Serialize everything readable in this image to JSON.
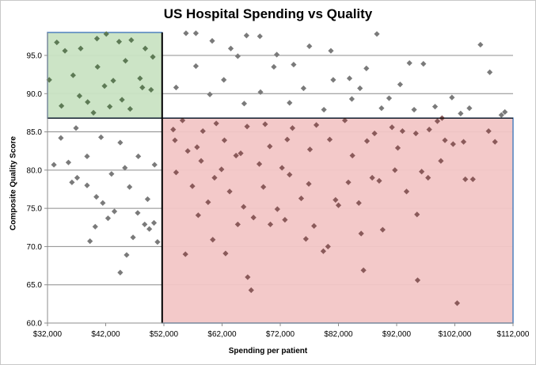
{
  "chart_data": {
    "type": "scatter",
    "title": "US Hospital Spending vs Quality",
    "xlabel": "Spending per patient",
    "ylabel": "Composite Quality Score",
    "xlim": [
      32000,
      112000
    ],
    "ylim": [
      60,
      98
    ],
    "x_ticks": [
      "$32,000",
      "$42,000",
      "$52,000",
      "$62,000",
      "$72,000",
      "$82,000",
      "$92,000",
      "$102,000",
      "$112,000"
    ],
    "x_tick_values": [
      32000,
      42000,
      52000,
      62000,
      72000,
      82000,
      92000,
      102000,
      112000
    ],
    "y_ticks": [
      "60.0",
      "65.0",
      "70.0",
      "75.0",
      "80.0",
      "85.0",
      "90.0",
      "95.0"
    ],
    "y_tick_values": [
      60,
      65,
      70,
      75,
      80,
      85,
      90,
      95
    ],
    "grid": "horizontal",
    "marker": "diamond",
    "point_color": "#7a7a7a",
    "regions": [
      {
        "x_range": [
          32000,
          51700
        ],
        "y_range": [
          86.8,
          98
        ],
        "fill": "#c9e3c3",
        "border": "#4f81bd",
        "marker_color": "#5d7a55"
      },
      {
        "x_range": [
          51700,
          112000
        ],
        "y_range": [
          60,
          86.8
        ],
        "fill": "#f2c6c6",
        "border": "#4f81bd",
        "marker_color": "#8a5a5a"
      }
    ],
    "divider_lines": {
      "x": 51700,
      "y": 86.8,
      "color": "#000000"
    },
    "points": [
      [
        32300,
        91.8
      ],
      [
        33100,
        80.7
      ],
      [
        34300,
        84.2
      ],
      [
        35600,
        81.0
      ],
      [
        36200,
        78.4
      ],
      [
        37100,
        79.0
      ],
      [
        38800,
        78.0
      ],
      [
        39300,
        70.7
      ],
      [
        40200,
        72.6
      ],
      [
        41500,
        75.7
      ],
      [
        42400,
        73.7
      ],
      [
        43500,
        74.6
      ],
      [
        44500,
        66.6
      ],
      [
        45600,
        68.9
      ],
      [
        46700,
        71.2
      ],
      [
        47500,
        74.4
      ],
      [
        48700,
        72.9
      ],
      [
        49500,
        72.3
      ],
      [
        50300,
        73.1
      ],
      [
        50900,
        70.6
      ],
      [
        33600,
        96.7
      ],
      [
        35000,
        95.6
      ],
      [
        37700,
        95.9
      ],
      [
        40500,
        97.2
      ],
      [
        42100,
        97.8
      ],
      [
        44300,
        96.8
      ],
      [
        46400,
        97.0
      ],
      [
        48800,
        95.9
      ],
      [
        50100,
        94.8
      ],
      [
        36400,
        92.4
      ],
      [
        38900,
        88.9
      ],
      [
        41800,
        91.0
      ],
      [
        44800,
        89.2
      ],
      [
        47900,
        92.0
      ],
      [
        49800,
        90.5
      ],
      [
        34400,
        88.4
      ],
      [
        37500,
        89.7
      ],
      [
        40600,
        93.5
      ],
      [
        43300,
        91.7
      ],
      [
        46200,
        88.0
      ],
      [
        48300,
        90.8
      ],
      [
        39900,
        87.5
      ],
      [
        45400,
        94.3
      ],
      [
        42700,
        88.3
      ],
      [
        36900,
        85.5
      ],
      [
        41200,
        84.3
      ],
      [
        44500,
        83.6
      ],
      [
        47600,
        81.8
      ],
      [
        50400,
        80.7
      ],
      [
        38800,
        81.8
      ],
      [
        43000,
        79.5
      ],
      [
        46100,
        77.8
      ],
      [
        49200,
        76.2
      ],
      [
        40400,
        76.5
      ],
      [
        45300,
        80.3
      ],
      [
        55800,
        97.9
      ],
      [
        57500,
        97.9
      ],
      [
        60300,
        96.9
      ],
      [
        63500,
        95.9
      ],
      [
        66200,
        97.6
      ],
      [
        68500,
        97.5
      ],
      [
        71400,
        95.1
      ],
      [
        74300,
        93.8
      ],
      [
        77000,
        96.2
      ],
      [
        80700,
        95.6
      ],
      [
        83900,
        92.0
      ],
      [
        86800,
        93.3
      ],
      [
        88600,
        97.8
      ],
      [
        90700,
        89.4
      ],
      [
        94200,
        94.0
      ],
      [
        96600,
        93.9
      ],
      [
        99800,
        86.8
      ],
      [
        103000,
        87.4
      ],
      [
        106400,
        96.4
      ],
      [
        108000,
        92.8
      ],
      [
        110000,
        87.2
      ],
      [
        62300,
        91.8
      ],
      [
        68600,
        90.2
      ],
      [
        73600,
        88.8
      ],
      [
        79500,
        87.9
      ],
      [
        84300,
        89.3
      ],
      [
        89400,
        88.1
      ],
      [
        95000,
        87.9
      ],
      [
        98600,
        88.3
      ],
      [
        92600,
        91.2
      ],
      [
        85700,
        90.7
      ],
      [
        81100,
        91.8
      ],
      [
        76000,
        90.7
      ],
      [
        70900,
        93.5
      ],
      [
        64700,
        94.9
      ],
      [
        57500,
        93.6
      ],
      [
        59900,
        89.9
      ],
      [
        54100,
        90.8
      ],
      [
        65800,
        88.7
      ],
      [
        101500,
        89.5
      ],
      [
        104500,
        88.1
      ],
      [
        53600,
        85.3
      ],
      [
        56100,
        82.5
      ],
      [
        58400,
        81.2
      ],
      [
        60700,
        79.0
      ],
      [
        63300,
        77.2
      ],
      [
        65700,
        75.2
      ],
      [
        67400,
        73.8
      ],
      [
        69100,
        77.8
      ],
      [
        71500,
        74.9
      ],
      [
        73600,
        79.4
      ],
      [
        75600,
        76.3
      ],
      [
        77800,
        72.7
      ],
      [
        79400,
        69.4
      ],
      [
        81500,
        76.1
      ],
      [
        83700,
        78.4
      ],
      [
        85900,
        71.7
      ],
      [
        87800,
        79.0
      ],
      [
        89600,
        72.2
      ],
      [
        91700,
        80.0
      ],
      [
        93700,
        77.2
      ],
      [
        95500,
        74.2
      ],
      [
        97400,
        79.0
      ],
      [
        99600,
        81.2
      ],
      [
        101700,
        83.4
      ],
      [
        103500,
        83.7
      ],
      [
        105100,
        78.8
      ],
      [
        108900,
        83.7
      ],
      [
        110600,
        87.6
      ],
      [
        55700,
        69.0
      ],
      [
        57900,
        74.1
      ],
      [
        60400,
        70.9
      ],
      [
        62600,
        69.1
      ],
      [
        66400,
        66.0
      ],
      [
        67000,
        64.3
      ],
      [
        64700,
        72.9
      ],
      [
        70300,
        72.9
      ],
      [
        72800,
        73.5
      ],
      [
        76400,
        71.0
      ],
      [
        80200,
        70.0
      ],
      [
        86300,
        66.9
      ],
      [
        95600,
        65.6
      ],
      [
        102400,
        62.6
      ],
      [
        96300,
        79.8
      ],
      [
        92200,
        82.9
      ],
      [
        88200,
        84.8
      ],
      [
        84400,
        81.9
      ],
      [
        80500,
        84.0
      ],
      [
        77100,
        82.7
      ],
      [
        74100,
        85.5
      ],
      [
        70200,
        83.1
      ],
      [
        66300,
        85.7
      ],
      [
        62400,
        83.9
      ],
      [
        58700,
        85.1
      ],
      [
        55200,
        86.5
      ],
      [
        54100,
        79.7
      ],
      [
        56900,
        77.9
      ],
      [
        59600,
        75.8
      ],
      [
        61900,
        80.1
      ],
      [
        64400,
        81.9
      ],
      [
        68400,
        80.8
      ],
      [
        72300,
        80.3
      ],
      [
        76900,
        78.2
      ],
      [
        82000,
        75.4
      ],
      [
        85500,
        75.7
      ],
      [
        89000,
        78.6
      ],
      [
        93000,
        85.1
      ],
      [
        97600,
        85.3
      ],
      [
        100300,
        83.9
      ],
      [
        103800,
        78.8
      ],
      [
        107800,
        85.1
      ],
      [
        53900,
        83.9
      ],
      [
        57700,
        83.0
      ],
      [
        61000,
        86.1
      ],
      [
        65200,
        82.2
      ],
      [
        69400,
        86.0
      ],
      [
        73200,
        84.0
      ],
      [
        78200,
        85.9
      ],
      [
        83100,
        86.5
      ],
      [
        86900,
        83.8
      ],
      [
        91200,
        85.6
      ],
      [
        95300,
        84.8
      ],
      [
        99000,
        86.4
      ]
    ]
  }
}
